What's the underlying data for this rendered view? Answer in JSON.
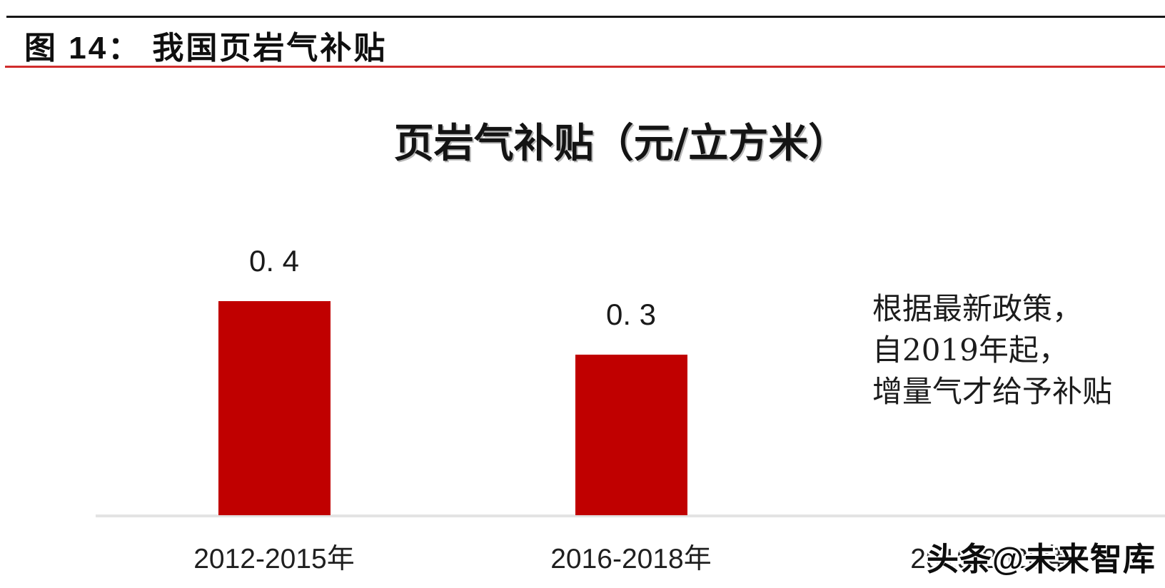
{
  "figure": {
    "header": "图 14： 我国页岩气补贴"
  },
  "chart_data": {
    "type": "bar",
    "title": "页岩气补贴（元/立方米）",
    "categories": [
      "2012-2015年",
      "2016-2018年",
      "2019-2020年"
    ],
    "values": [
      0.4,
      0.3,
      0
    ],
    "value_labels": [
      "0. 4",
      "0. 3",
      ""
    ],
    "xlabel": "",
    "ylabel": "元/立方米",
    "ylim": [
      0,
      0.45
    ],
    "grid": false,
    "legend": "none",
    "bar_color": "#c00000",
    "baseline_color": "#e3e3e3",
    "annotation": {
      "lines": [
        "根据最新政策，",
        "自2019年起，",
        "增量气才给予补贴"
      ]
    }
  },
  "watermark": {
    "text": "头条@未来智库"
  },
  "colors": {
    "background": "#ffffff",
    "bar": "#c00000",
    "header_rule_top": "#161616",
    "header_rule_accent": "#d02c2c",
    "axis": "#e3e3e3",
    "text": "#1a1a1a"
  }
}
